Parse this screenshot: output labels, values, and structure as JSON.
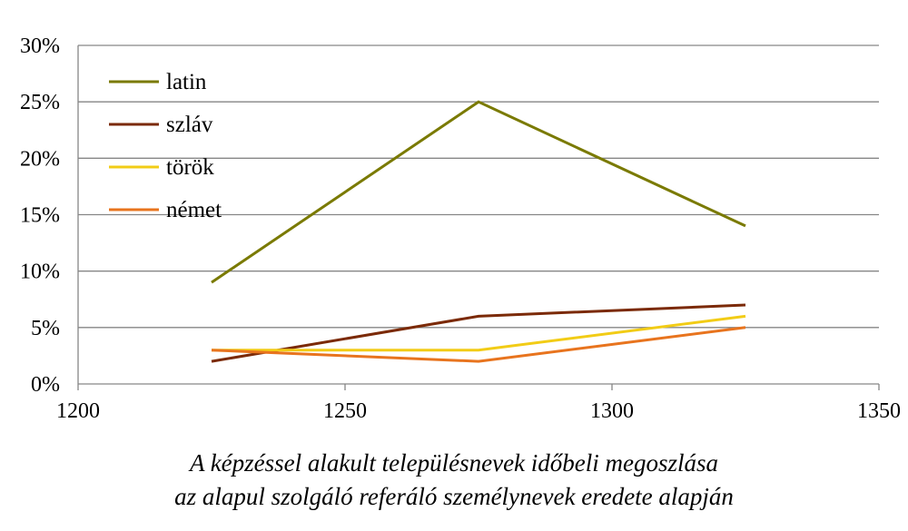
{
  "chart_data": {
    "type": "line",
    "title": "",
    "xlabel": "",
    "ylabel": "",
    "xlim": [
      1200,
      1350
    ],
    "ylim": [
      0,
      30
    ],
    "xticks": [
      1200,
      1250,
      1300,
      1350
    ],
    "yticks": [
      0,
      5,
      10,
      15,
      20,
      25,
      30
    ],
    "x_tick_labels": [
      "1200",
      "1250",
      "1300",
      "1350"
    ],
    "y_tick_labels": [
      "0%",
      "5%",
      "10%",
      "15%",
      "20%",
      "25%",
      "30%"
    ],
    "grid": "horizontal",
    "legend_position": "top-left",
    "x": [
      1225,
      1275,
      1325
    ],
    "series": [
      {
        "name": "latin",
        "color": "#7a7a00",
        "values": [
          9,
          25,
          14
        ]
      },
      {
        "name": "szláv",
        "color": "#7b2a07",
        "values": [
          2,
          6,
          7
        ]
      },
      {
        "name": "török",
        "color": "#f2cc16",
        "values": [
          3,
          3,
          6
        ]
      },
      {
        "name": "német",
        "color": "#e8741e",
        "values": [
          3,
          2,
          5
        ]
      }
    ]
  },
  "caption": {
    "line1": "A képzéssel alakult településnevek időbeli megoszlása",
    "line2": "az alapul szolgáló referáló személynevek eredete alapján"
  }
}
